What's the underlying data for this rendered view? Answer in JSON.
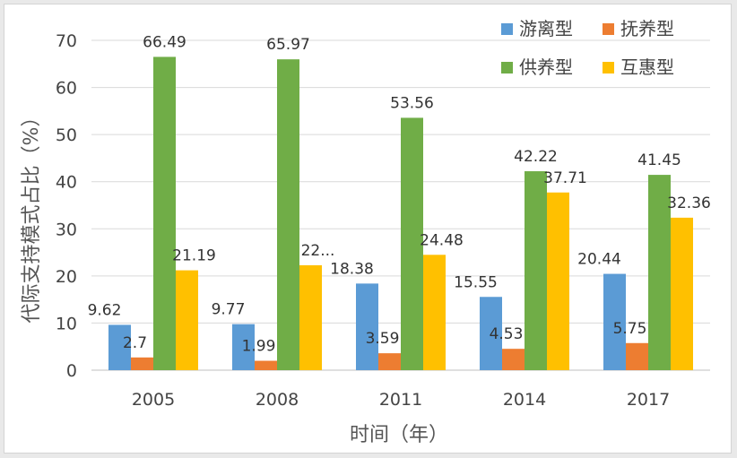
{
  "chart_data": {
    "type": "bar",
    "xlabel": "时间（年）",
    "ylabel": "代际支持模式占比（%）",
    "ylim": [
      0,
      70
    ],
    "yticks": [
      0,
      10,
      20,
      30,
      40,
      50,
      60,
      70
    ],
    "grid": true,
    "legend_position": "top-right",
    "categories": [
      "2005",
      "2008",
      "2011",
      "2014",
      "2017"
    ],
    "series": [
      {
        "name": "游离型",
        "color": "#5b9bd5",
        "values": [
          9.62,
          9.77,
          18.38,
          15.55,
          20.44
        ],
        "labels": [
          "9.62",
          "9.77",
          "18.38",
          "15.55",
          "20.44"
        ]
      },
      {
        "name": "抚养型",
        "color": "#ed7d31",
        "values": [
          2.7,
          1.99,
          3.59,
          4.53,
          5.75
        ],
        "labels": [
          "2.7",
          "1.99",
          "3.59",
          "4.53",
          "5.75"
        ]
      },
      {
        "name": "供养型",
        "color": "#70ad47",
        "values": [
          66.49,
          65.97,
          53.56,
          42.22,
          41.45
        ],
        "labels": [
          "66.49",
          "65.97",
          "53.56",
          "42.22",
          "41.45"
        ]
      },
      {
        "name": "互惠型",
        "color": "#ffc000",
        "values": [
          21.19,
          22.27,
          24.48,
          37.71,
          32.36
        ],
        "labels": [
          "21.19",
          "22...",
          "24.48",
          "37.71",
          "32.36"
        ]
      }
    ]
  }
}
